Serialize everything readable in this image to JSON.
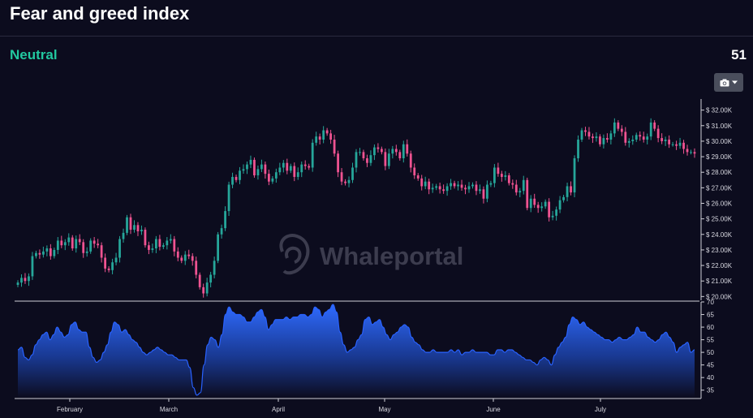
{
  "page": {
    "title": "Fear and greed index"
  },
  "summary": {
    "status": "Neutral",
    "value": "51"
  },
  "toolbar": {
    "camera_icon": "camera-icon",
    "dropdown_icon": "caret-down-icon"
  },
  "watermark": {
    "text": "Whaleportal"
  },
  "colors": {
    "up": "#26a69a",
    "down": "#ef5391",
    "area": "#2962ff",
    "status": "#22c8a0"
  },
  "chart_data": [
    {
      "type": "candlestick",
      "title": "",
      "ylabel": "",
      "ylim": [
        19600,
        32400
      ],
      "y_ticks": [
        "$ 20.00K",
        "$ 21.00K",
        "$ 22.00K",
        "$ 23.00K",
        "$ 24.00K",
        "$ 25.00K",
        "$ 26.00K",
        "$ 27.00K",
        "$ 28.00K",
        "$ 29.00K",
        "$ 30.00K",
        "$ 31.00K",
        "$ 32.00K"
      ],
      "x_ticks": [
        "February",
        "March",
        "April",
        "May",
        "June",
        "July"
      ],
      "grid": false,
      "closes": [
        20900,
        21200,
        21000,
        21300,
        22600,
        22800,
        22700,
        22900,
        23100,
        22600,
        23000,
        23600,
        23300,
        23500,
        23800,
        23100,
        23700,
        23500,
        22800,
        22900,
        23600,
        23400,
        23300,
        22500,
        21800,
        21700,
        22200,
        22500,
        23700,
        24100,
        25100,
        24300,
        24600,
        24200,
        24300,
        23300,
        23000,
        23100,
        23700,
        23200,
        23300,
        23600,
        23700,
        22900,
        22500,
        22300,
        22700,
        22600,
        22300,
        21400,
        20600,
        20200,
        20900,
        21400,
        22300,
        24000,
        24400,
        25500,
        27200,
        27700,
        27500,
        28100,
        28200,
        28500,
        28800,
        27800,
        28200,
        28500,
        27900,
        27400,
        27600,
        28000,
        28300,
        28600,
        28100,
        28400,
        27700,
        28000,
        28500,
        28400,
        28300,
        29900,
        30300,
        30100,
        30700,
        30500,
        30100,
        29200,
        28000,
        27400,
        27300,
        27500,
        28300,
        29300,
        29300,
        28900,
        28600,
        29100,
        29600,
        29500,
        29300,
        28400,
        29200,
        29500,
        29300,
        28900,
        29800,
        29200,
        28300,
        27800,
        27600,
        27100,
        27400,
        26900,
        27000,
        27100,
        26900,
        26800,
        27100,
        27300,
        27100,
        27200,
        27000,
        26900,
        27100,
        27200,
        26800,
        26900,
        26300,
        27200,
        27300,
        28300,
        27900,
        27700,
        27800,
        27300,
        27200,
        26700,
        26800,
        27500,
        25700,
        26300,
        25900,
        25700,
        25800,
        26100,
        25100,
        25200,
        25600,
        26200,
        26400,
        27100,
        26700,
        28900,
        30100,
        30700,
        30600,
        30300,
        30200,
        30300,
        29800,
        30200,
        30100,
        30500,
        31200,
        30800,
        30600,
        29900,
        30000,
        30100,
        30400,
        30300,
        30100,
        30300,
        31200,
        30800,
        30200,
        30000,
        30100,
        29800,
        29800,
        29700,
        29900,
        29500,
        29300,
        29300,
        29200
      ]
    },
    {
      "type": "area",
      "title": "",
      "ylabel": "",
      "ylim": [
        32,
        70
      ],
      "y_ticks": [
        "35",
        "40",
        "45",
        "50",
        "55",
        "60",
        "65",
        "70"
      ],
      "values": [
        51,
        52,
        48,
        47,
        49,
        53,
        55,
        57,
        58,
        55,
        57,
        60,
        58,
        56,
        57,
        61,
        62,
        59,
        58,
        58,
        52,
        48,
        46,
        47,
        50,
        53,
        58,
        62,
        61,
        58,
        59,
        57,
        55,
        54,
        52,
        50,
        49,
        50,
        51,
        52,
        51,
        50,
        49,
        49,
        48,
        47,
        47,
        47,
        44,
        36,
        33,
        34,
        45,
        53,
        56,
        55,
        52,
        57,
        65,
        68,
        66,
        65,
        65,
        64,
        62,
        62,
        64,
        66,
        67,
        64,
        59,
        61,
        63,
        63,
        63,
        64,
        63,
        64,
        64,
        65,
        65,
        64,
        65,
        68,
        67,
        64,
        66,
        67,
        69,
        66,
        58,
        53,
        50,
        51,
        52,
        55,
        57,
        63,
        64,
        61,
        62,
        63,
        60,
        57,
        55,
        57,
        58,
        60,
        61,
        60,
        56,
        54,
        53,
        51,
        50,
        50,
        51,
        50,
        50,
        50,
        50,
        51,
        50,
        51,
        49,
        50,
        50,
        51,
        50,
        50,
        50,
        50,
        49,
        49,
        51,
        51,
        50,
        51,
        51,
        50,
        49,
        48,
        47,
        47,
        46,
        45,
        47,
        48,
        47,
        45,
        49,
        52,
        54,
        56,
        61,
        64,
        63,
        61,
        62,
        60,
        59,
        58,
        57,
        56,
        55,
        55,
        54,
        55,
        56,
        55,
        55,
        56,
        57,
        60,
        58,
        58,
        56,
        55,
        54,
        55,
        57,
        58,
        56,
        54,
        50,
        52,
        53,
        54,
        50,
        51
      ]
    }
  ]
}
